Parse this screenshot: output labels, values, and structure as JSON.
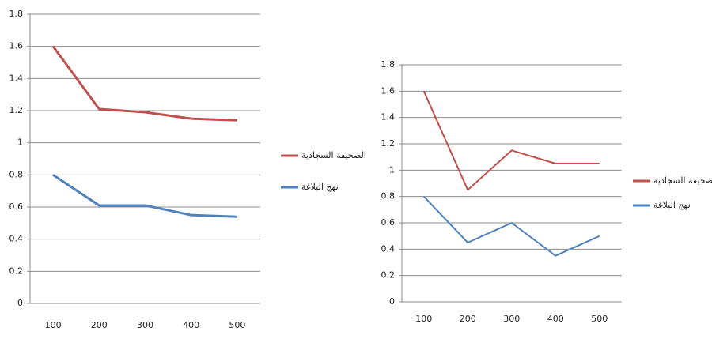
{
  "chart_data": [
    {
      "type": "line",
      "x": [
        100,
        200,
        300,
        400,
        500
      ],
      "xlim": [
        50,
        550
      ],
      "xticks": [
        100,
        200,
        300,
        400,
        500
      ],
      "ylim": [
        0,
        1.8
      ],
      "yticks": [
        0,
        0.2,
        0.4,
        0.6,
        0.8,
        1,
        1.2,
        1.4,
        1.6,
        1.8
      ],
      "grid": true,
      "series": [
        {
          "name": "الصحيفة السجادية",
          "color": "#c0504d",
          "values": [
            1.6,
            1.21,
            1.19,
            1.15,
            1.14
          ]
        },
        {
          "name": "نهج البلاغة",
          "color": "#4f81bd",
          "values": [
            0.8,
            0.61,
            0.61,
            0.55,
            0.54
          ]
        }
      ]
    },
    {
      "type": "line",
      "x": [
        100,
        200,
        300,
        400,
        500
      ],
      "xlim": [
        50,
        550
      ],
      "xticks": [
        100,
        200,
        300,
        400,
        500
      ],
      "ylim": [
        0,
        1.8
      ],
      "yticks": [
        0,
        0.2,
        0.4,
        0.6,
        0.8,
        1,
        1.2,
        1.4,
        1.6,
        1.8
      ],
      "grid": true,
      "series": [
        {
          "name": "الصحيفة السجادية",
          "color": "#c0504d",
          "values": [
            1.6,
            0.85,
            1.15,
            1.05,
            1.05
          ]
        },
        {
          "name": "نهج البلاغة",
          "color": "#4f81bd",
          "values": [
            0.8,
            0.45,
            0.6,
            0.35,
            0.5
          ]
        }
      ]
    }
  ]
}
